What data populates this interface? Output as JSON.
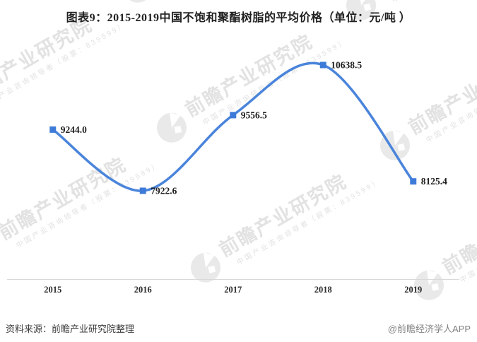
{
  "chart_data": {
    "type": "line",
    "title": "图表9：2015-2019中国不饱和聚酯树脂的平均价格（单位：元/吨 ）",
    "categories": [
      "2015",
      "2016",
      "2017",
      "2018",
      "2019"
    ],
    "values": [
      9244.0,
      7922.6,
      9556.5,
      10638.5,
      8125.4
    ],
    "value_labels": [
      "9244.0",
      "7922.6",
      "9556.5",
      "10638.5",
      "8125.4"
    ],
    "xlabel": "",
    "ylabel": "",
    "unit": "元/吨",
    "smooth": true,
    "marker_shape": "square",
    "grid": false,
    "y_axis_visible": false,
    "legend_position": "none",
    "line_color": "#4A84DB",
    "marker_color": "#3E7BD9",
    "label_color": "#1f1f1f",
    "axis_line_color": "#d9d9d9"
  },
  "watermark": {
    "brand": "前瞻产业研究院",
    "tagline": "中国产业咨询领导者（股票：839599）",
    "text_color": "#e2e2e2",
    "circle_color": "#e9e9e9"
  },
  "footer": {
    "source": "资料来源：前瞻产业研究院整理",
    "credit": "@前瞻经济学人APP"
  }
}
